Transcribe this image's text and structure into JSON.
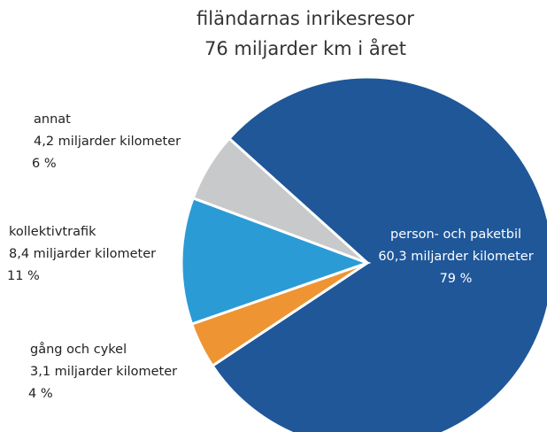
{
  "chart_data": {
    "type": "pie",
    "title": "filändarnas inrikesresor",
    "subtitle": "76 miljarder km i året",
    "categories": [
      "person- och paketbil",
      "gång och cykel",
      "kollektivtrafik",
      "annat"
    ],
    "values": [
      79,
      4,
      11,
      6
    ],
    "value_labels": [
      "79 %",
      "4 %",
      "11 %",
      "6 %"
    ],
    "km_labels": [
      "60,3 miljarder kilometer",
      "3,1 miljarder kilometer",
      "8,4 miljarder kilometer",
      "4,2 miljarder kilometer"
    ],
    "colors": [
      "#1f5799",
      "#ef9433",
      "#2b9bd6",
      "#c8c9cb"
    ]
  }
}
